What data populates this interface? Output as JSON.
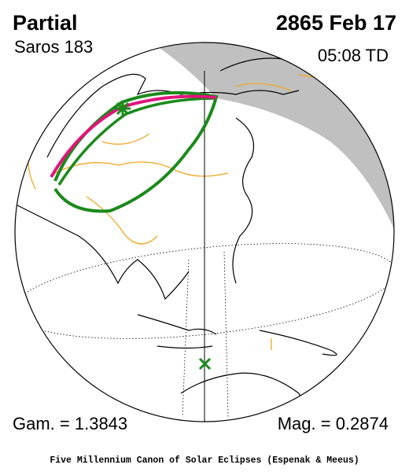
{
  "header": {
    "type": "Partial",
    "saros": "Saros 183",
    "date": "2865 Feb 17",
    "time": "05:08 TD"
  },
  "footer": {
    "gamma": "Gam. = 1.3843",
    "magnitude": "Mag. = 0.2874",
    "credit": "Five Millennium Canon of Solar Eclipses (Espenak & Meeus)"
  }
}
